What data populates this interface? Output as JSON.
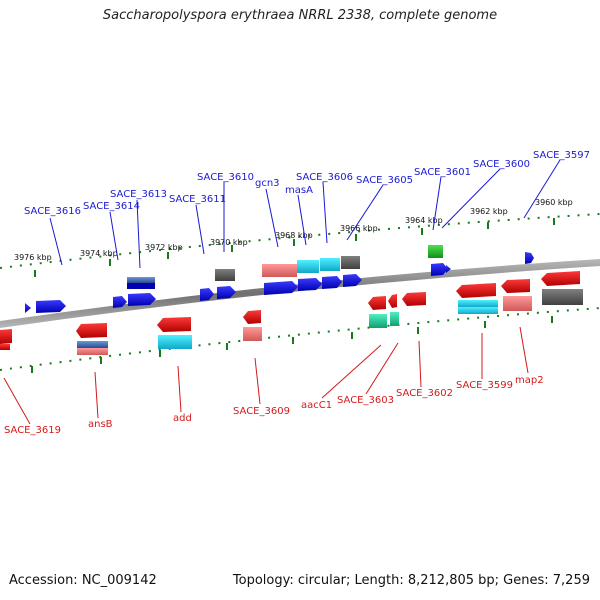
{
  "title": "Saccharopolyspora erythraea NRRL 2338, complete genome",
  "footer": {
    "accession": "Accession: NC_009142",
    "summary": "Topology: circular; Length: 8,212,805 bp; Genes: 7,259"
  },
  "colors": {
    "forward_label": "#1a1ad4",
    "reverse_label": "#d41a1a",
    "backbone": "#888888",
    "tick": "#1a7a1a"
  },
  "ruler_top": [
    "3976 kbp",
    "3974 kbp",
    "3972 kbp",
    "3970 kbp",
    "3968 kbp",
    "3966 kbp",
    "3964 kbp",
    "3962 kbp",
    "3960 kbp"
  ],
  "forward_labels": [
    "SACE_3616",
    "SACE_3614",
    "SACE_3613",
    "SACE_3611",
    "SACE_3610",
    "gcn3",
    "masA",
    "SACE_3606",
    "SACE_3605",
    "SACE_3601",
    "SACE_3600",
    "SACE_3597"
  ],
  "reverse_labels": [
    "SACE_3619",
    "ansB",
    "add",
    "SACE_3609",
    "aacC1",
    "SACE_3603",
    "SACE_3602",
    "SACE_3599",
    "map2"
  ]
}
